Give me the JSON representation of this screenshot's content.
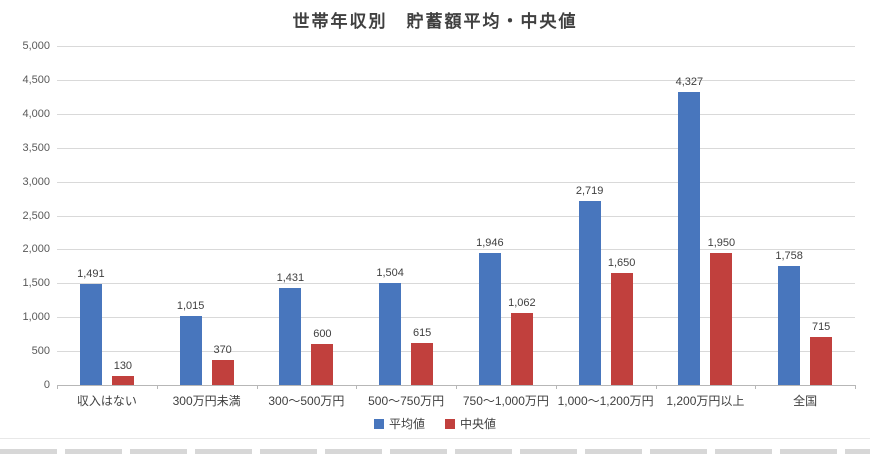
{
  "chart_data": {
    "type": "bar",
    "title": "世帯年収別　貯蓄額平均・中央値",
    "categories": [
      "収入はない",
      "300万円未満",
      "300〜500万円",
      "500〜750万円",
      "750〜1,000万円",
      "1,000〜1,200万円",
      "1,200万円以上",
      "全国"
    ],
    "series": [
      {
        "name": "平均値",
        "color": "#4876BD",
        "values": [
          1491,
          1015,
          1431,
          1504,
          1946,
          2719,
          4327,
          1758
        ],
        "value_labels": [
          "1,491",
          "1,015",
          "1,431",
          "1,504",
          "1,946",
          "2,719",
          "4,327",
          "1,758"
        ]
      },
      {
        "name": "中央値",
        "color": "#C1403D",
        "values": [
          130,
          370,
          600,
          615,
          1062,
          1650,
          1950,
          715
        ],
        "value_labels": [
          "130",
          "370",
          "600",
          "615",
          "1,062",
          "1,650",
          "1,950",
          "715"
        ]
      }
    ],
    "ylim": [
      0,
      5000
    ],
    "ytick_step": 500,
    "ytick_labels": [
      "0",
      "500",
      "1,000",
      "1,500",
      "2,000",
      "2,500",
      "3,000",
      "3,500",
      "4,000",
      "4,500",
      "5,000"
    ],
    "grid": "horizontal",
    "legend_position": "bottom"
  }
}
